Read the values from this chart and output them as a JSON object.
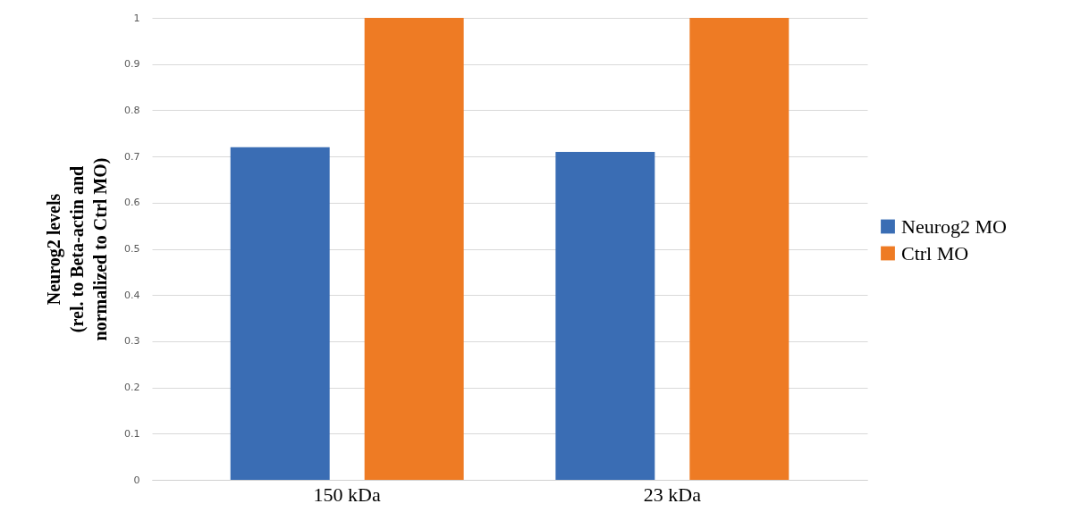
{
  "chart_data": {
    "type": "bar",
    "ylabel": "Neurog2 levels\n(rel. to Beta-actin and\nnormalized to Ctrl MO)",
    "categories": [
      "150 kDa",
      "23 kDa"
    ],
    "series": [
      {
        "name": "Neurog2 MO",
        "color": "#3a6db4",
        "values": [
          0.72,
          0.71
        ]
      },
      {
        "name": "Ctrl MO",
        "color": "#ee7b24",
        "values": [
          1,
          1
        ]
      }
    ],
    "ylim": [
      0,
      1
    ],
    "yticks": [
      0,
      0.1,
      0.2,
      0.3,
      0.4,
      0.5,
      0.6,
      0.7,
      0.8,
      0.9,
      1
    ],
    "grid": "y",
    "legend": "right"
  }
}
